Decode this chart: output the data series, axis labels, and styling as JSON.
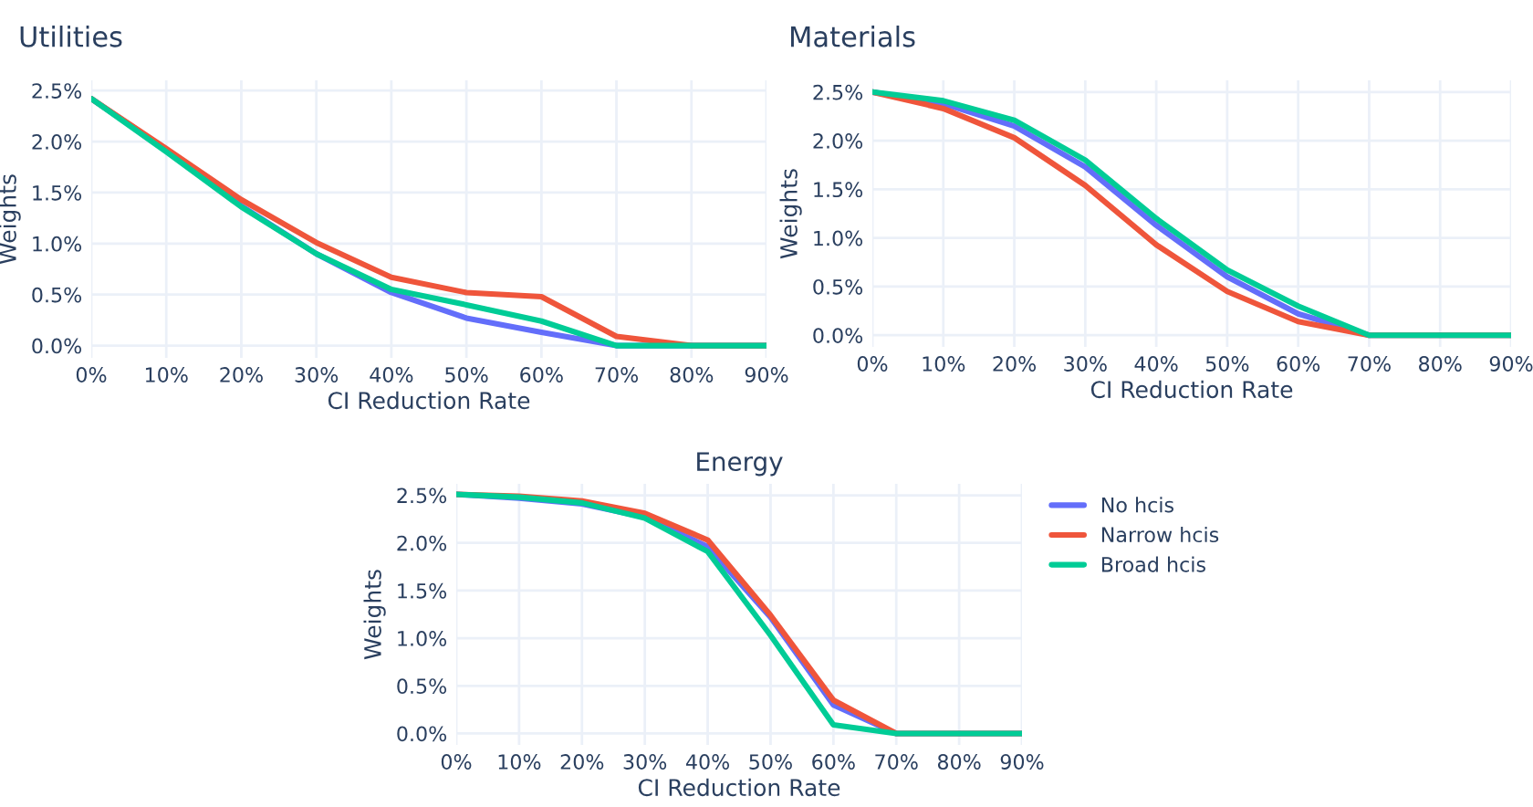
{
  "chart_data": [
    {
      "type": "line",
      "title": "Utilities",
      "xlabel": "CI Reduction Rate",
      "ylabel": "Weights",
      "x": [
        0,
        10,
        20,
        30,
        40,
        50,
        60,
        70,
        80,
        90
      ],
      "series": [
        {
          "color": "#636efa",
          "values": [
            2.42,
            1.92,
            1.37,
            0.9,
            0.52,
            0.27,
            0.13,
            0.0,
            0.0,
            0.0
          ]
        },
        {
          "color": "#ef553b",
          "values": [
            2.42,
            1.93,
            1.43,
            1.01,
            0.67,
            0.52,
            0.48,
            0.09,
            0.0,
            0.0
          ]
        },
        {
          "color": "#00cc96",
          "values": [
            2.42,
            1.9,
            1.36,
            0.9,
            0.55,
            0.4,
            0.24,
            0.0,
            0.0,
            0.0
          ]
        }
      ],
      "xlim": [
        0,
        90
      ],
      "ylim": [
        -0.12,
        2.6
      ],
      "xticks": [
        {
          "value": 0,
          "label": "0%"
        },
        {
          "value": 10,
          "label": "10%"
        },
        {
          "value": 20,
          "label": "20%"
        },
        {
          "value": 30,
          "label": "30%"
        },
        {
          "value": 40,
          "label": "40%"
        },
        {
          "value": 50,
          "label": "50%"
        },
        {
          "value": 60,
          "label": "60%"
        },
        {
          "value": 70,
          "label": "70%"
        },
        {
          "value": 80,
          "label": "80%"
        },
        {
          "value": 90,
          "label": "90%"
        }
      ],
      "yticks": [
        {
          "value": 0,
          "label": "0.0%"
        },
        {
          "value": 0.5,
          "label": "0.5%"
        },
        {
          "value": 1.0,
          "label": "1.0%"
        },
        {
          "value": 1.5,
          "label": "1.5%"
        },
        {
          "value": 2.0,
          "label": "2.0%"
        },
        {
          "value": 2.5,
          "label": "2.5%"
        }
      ],
      "grid": true,
      "legend": false
    },
    {
      "type": "line",
      "title": "Materials",
      "xlabel": "CI Reduction Rate",
      "ylabel": "Weights",
      "x": [
        0,
        10,
        20,
        30,
        40,
        50,
        60,
        70,
        80,
        90
      ],
      "series": [
        {
          "color": "#636efa",
          "values": [
            2.5,
            2.38,
            2.15,
            1.73,
            1.13,
            0.6,
            0.22,
            0.0,
            0.0,
            0.0
          ]
        },
        {
          "color": "#ef553b",
          "values": [
            2.5,
            2.33,
            2.03,
            1.54,
            0.93,
            0.45,
            0.14,
            0.0,
            0.0,
            0.0
          ]
        },
        {
          "color": "#00cc96",
          "values": [
            2.5,
            2.41,
            2.21,
            1.8,
            1.2,
            0.67,
            0.3,
            0.0,
            0.0,
            0.0
          ]
        }
      ],
      "xlim": [
        0,
        90
      ],
      "ylim": [
        -0.12,
        2.62
      ],
      "xticks": [
        {
          "value": 0,
          "label": "0%"
        },
        {
          "value": 10,
          "label": "10%"
        },
        {
          "value": 20,
          "label": "20%"
        },
        {
          "value": 30,
          "label": "30%"
        },
        {
          "value": 40,
          "label": "40%"
        },
        {
          "value": 50,
          "label": "50%"
        },
        {
          "value": 60,
          "label": "60%"
        },
        {
          "value": 70,
          "label": "70%"
        },
        {
          "value": 80,
          "label": "80%"
        },
        {
          "value": 90,
          "label": "90%"
        }
      ],
      "yticks": [
        {
          "value": 0,
          "label": "0.0%"
        },
        {
          "value": 0.5,
          "label": "0.5%"
        },
        {
          "value": 1.0,
          "label": "1.0%"
        },
        {
          "value": 1.5,
          "label": "1.5%"
        },
        {
          "value": 2.0,
          "label": "2.0%"
        },
        {
          "value": 2.5,
          "label": "2.5%"
        }
      ],
      "grid": true,
      "legend": false
    },
    {
      "type": "line",
      "title": "Energy",
      "xlabel": "CI Reduction Rate",
      "ylabel": "Weights",
      "x": [
        0,
        10,
        20,
        30,
        40,
        50,
        60,
        70,
        80,
        90
      ],
      "series": [
        {
          "name": "No hcis",
          "color": "#636efa",
          "values": [
            2.51,
            2.47,
            2.41,
            2.27,
            1.96,
            1.22,
            0.3,
            0.0,
            0.0,
            0.0
          ]
        },
        {
          "name": "Narrow hcis",
          "color": "#ef553b",
          "values": [
            2.51,
            2.49,
            2.44,
            2.31,
            2.03,
            1.24,
            0.35,
            0.0,
            0.0,
            0.0
          ]
        },
        {
          "name": "Broad hcis",
          "color": "#00cc96",
          "values": [
            2.51,
            2.48,
            2.42,
            2.26,
            1.91,
            1.03,
            0.09,
            0.0,
            0.0,
            0.0
          ]
        }
      ],
      "xlim": [
        0,
        90
      ],
      "ylim": [
        -0.12,
        2.62
      ],
      "xticks": [
        {
          "value": 0,
          "label": "0%"
        },
        {
          "value": 10,
          "label": "10%"
        },
        {
          "value": 20,
          "label": "20%"
        },
        {
          "value": 30,
          "label": "30%"
        },
        {
          "value": 40,
          "label": "40%"
        },
        {
          "value": 50,
          "label": "50%"
        },
        {
          "value": 60,
          "label": "60%"
        },
        {
          "value": 70,
          "label": "70%"
        },
        {
          "value": 80,
          "label": "80%"
        },
        {
          "value": 90,
          "label": "90%"
        }
      ],
      "yticks": [
        {
          "value": 0,
          "label": "0.0%"
        },
        {
          "value": 0.5,
          "label": "0.5%"
        },
        {
          "value": 1.0,
          "label": "1.0%"
        },
        {
          "value": 1.5,
          "label": "1.5%"
        },
        {
          "value": 2.0,
          "label": "2.0%"
        },
        {
          "value": 2.5,
          "label": "2.5%"
        }
      ],
      "grid": true,
      "legend": "top right"
    }
  ]
}
